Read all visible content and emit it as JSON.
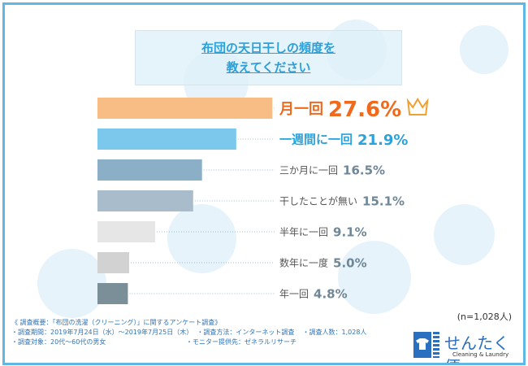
{
  "title": {
    "line1": "布団の天日干しの頻度を",
    "line2": "教えてください"
  },
  "chart_data": {
    "type": "bar",
    "orientation": "horizontal",
    "categories": [
      "月一回",
      "一週間に一回",
      "三か月に一回",
      "干したことが無い",
      "半年に一回",
      "数年に一度",
      "年一回"
    ],
    "values": [
      27.6,
      21.9,
      16.5,
      15.1,
      9.1,
      5.0,
      4.8
    ],
    "value_labels": [
      "27.6%",
      "21.9%",
      "16.5%",
      "15.1%",
      "9.1%",
      "5.0%",
      "4.8%"
    ],
    "unit": "%",
    "colors": [
      "#f7bd85",
      "#7cc8ec",
      "#8aafc7",
      "#a9bccc",
      "#e6e6e6",
      "#d2d2d2",
      "#7b8f98"
    ],
    "label_colors": [
      "#f06a1e",
      "#2aa2dc",
      "#555555",
      "#555555",
      "#555555",
      "#555555",
      "#555555"
    ],
    "top_icon": "crown-icon"
  },
  "sample": "(n=1,028人)",
  "notes": {
    "heading": "《 調査概要：「布団の洗濯（クリーニング）」に関するアンケート調査》",
    "period": "・調査期間：2019年7月24日（水）〜2019年7月25日（木）",
    "method": "・調査方法：インターネット調査",
    "count": "・調査人数：1,028人",
    "target": "・調査対象：20代〜60代の男女",
    "provider": "・モニター提供先：ゼネラルリサーチ"
  },
  "logo": {
    "name": "せんたく便",
    "sub": "Cleaning & Laundry"
  }
}
